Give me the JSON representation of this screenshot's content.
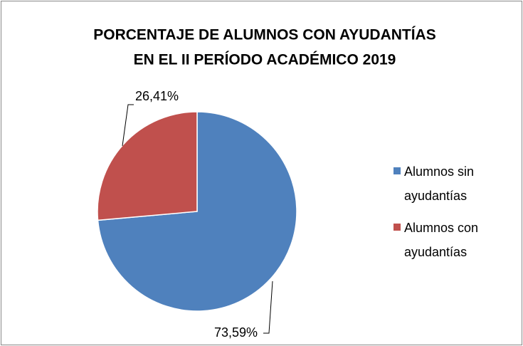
{
  "chart_data": {
    "type": "pie",
    "title": [
      "PORCENTAJE DE ALUMNOS CON AYUDANTÍAS",
      "EN EL II PERÍODO ACADÉMICO 2019"
    ],
    "categories": [
      "Alumnos sin ayudantías",
      "Alumnos con ayudantías"
    ],
    "values": [
      73.59,
      26.41
    ],
    "value_labels": [
      "73,59%",
      "26,41%"
    ],
    "colors": [
      "#4f81bd",
      "#c0504d"
    ],
    "legend": "right"
  }
}
